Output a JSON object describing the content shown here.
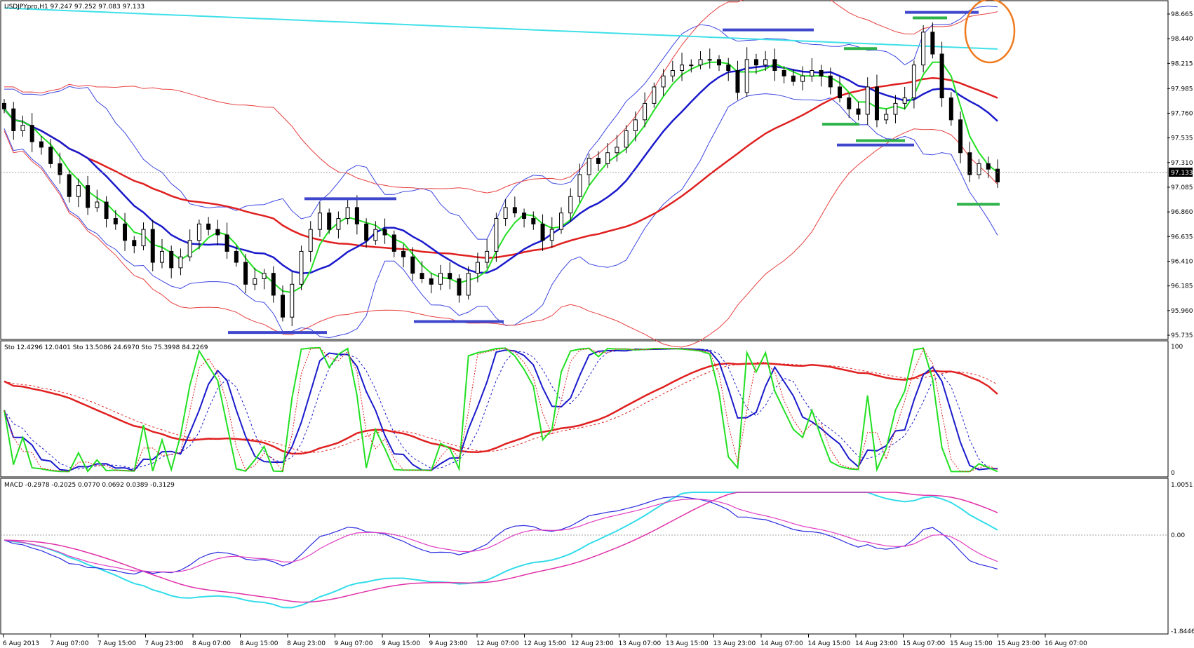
{
  "main_panel": {
    "header": "USDJPYpro,H1  97.247 97.252 97.083 97.133",
    "price_ticks": [
      "98.665",
      "98.440",
      "98.215",
      "97.985",
      "97.760",
      "97.535",
      "97.310",
      "97.085",
      "96.860",
      "96.635",
      "96.410",
      "96.185",
      "95.960",
      "95.735"
    ],
    "current_price": "97.133"
  },
  "stoch_panel": {
    "header": "Sto 12.4296 12.0401   Sto 13.5086 24.6970   Sto 75.3998 84.2269",
    "ticks": [
      "100",
      "0"
    ]
  },
  "macd_panel": {
    "header": "MACD -0.2978 -0.2025 0.0770 0.0692 0.0389 -0.3129",
    "ticks": [
      "1.0051",
      "0.00",
      "-1.8446"
    ]
  },
  "time_axis": {
    "labels": [
      "6 Aug 2013",
      "7 Aug 07:00",
      "7 Aug 15:00",
      "7 Aug 23:00",
      "8 Aug 07:00",
      "8 Aug 15:00",
      "8 Aug 23:00",
      "9 Aug 07:00",
      "9 Aug 15:00",
      "9 Aug 23:00",
      "12 Aug 07:00",
      "12 Aug 15:00",
      "12 Aug 23:00",
      "13 Aug 07:00",
      "13 Aug 15:00",
      "13 Aug 23:00",
      "14 Aug 07:00",
      "14 Aug 15:00",
      "14 Aug 23:00",
      "15 Aug 07:00",
      "15 Aug 15:00",
      "15 Aug 23:00",
      "16 Aug 07:00"
    ]
  },
  "chart_data": {
    "type": "candlestick",
    "symbol": "USDJPYpro",
    "timeframe": "H1",
    "ylim": [
      95.735,
      98.665
    ],
    "close_path": [
      97.8,
      97.6,
      97.65,
      97.5,
      97.45,
      97.3,
      97.2,
      97.0,
      97.1,
      96.9,
      96.95,
      96.8,
      96.75,
      96.6,
      96.55,
      96.7,
      96.4,
      96.5,
      96.35,
      96.45,
      96.6,
      96.75,
      96.7,
      96.65,
      96.5,
      96.4,
      96.2,
      96.25,
      96.3,
      96.1,
      95.9,
      96.2,
      96.5,
      96.7,
      96.85,
      96.7,
      96.8,
      96.9,
      96.75,
      96.6,
      96.7,
      96.65,
      96.5,
      96.45,
      96.3,
      96.25,
      96.2,
      96.3,
      96.25,
      96.1,
      96.3,
      96.4,
      96.5,
      96.8,
      96.9,
      96.85,
      96.8,
      96.75,
      96.6,
      96.7,
      96.85,
      97.0,
      97.2,
      97.35,
      97.3,
      97.4,
      97.45,
      97.6,
      97.7,
      97.85,
      98.0,
      98.1,
      98.15,
      98.2,
      98.2,
      98.25,
      98.25,
      98.2,
      98.15,
      97.95,
      98.25,
      98.2,
      98.25,
      98.15,
      98.1,
      98.05,
      98.1,
      98.15,
      98.1,
      98.0,
      97.9,
      97.8,
      97.75,
      98.0,
      97.7,
      97.75,
      97.85,
      97.9,
      98.2,
      98.5,
      98.3,
      97.9,
      97.7,
      97.4,
      97.2,
      97.3,
      97.25,
      97.133
    ],
    "annotations": [
      {
        "type": "horizontal-segment",
        "color": "#3f48cc",
        "price": 98.52
      },
      {
        "type": "horizontal-segment",
        "color": "#3f48cc",
        "price": 98.68
      },
      {
        "type": "horizontal-segment",
        "color": "#3f48cc",
        "price": 96.98
      },
      {
        "type": "horizontal-segment",
        "color": "#3f48cc",
        "price": 95.76
      },
      {
        "type": "horizontal-segment",
        "color": "#3f48cc",
        "price": 95.86
      },
      {
        "type": "horizontal-segment",
        "color": "#3f48cc",
        "price": 97.47
      },
      {
        "type": "horizontal-segment",
        "color": "#2db34a",
        "price": 98.35
      },
      {
        "type": "horizontal-segment",
        "color": "#2db34a",
        "price": 98.63
      },
      {
        "type": "horizontal-segment",
        "color": "#2db34a",
        "price": 97.66
      },
      {
        "type": "horizontal-segment",
        "color": "#2db34a",
        "price": 97.51
      },
      {
        "type": "horizontal-segment",
        "color": "#2db34a",
        "price": 96.93
      },
      {
        "type": "circle",
        "color": "#f07b1f"
      }
    ]
  },
  "colors": {
    "ma_fast": "#22e022",
    "ma_mid": "#1a1acc",
    "ma_slow": "#e02020",
    "bands_blue": "#3c46e0",
    "bands_red": "#e84040",
    "long_ma": "#3ee0e8",
    "macd_main": "#2a2ae0",
    "macd_signal": "#e03cc0",
    "macd_cyan": "#33dcea",
    "macd_magenta": "#e030a8",
    "orange_circle": "#f07b1f",
    "price_box": "#000000"
  }
}
